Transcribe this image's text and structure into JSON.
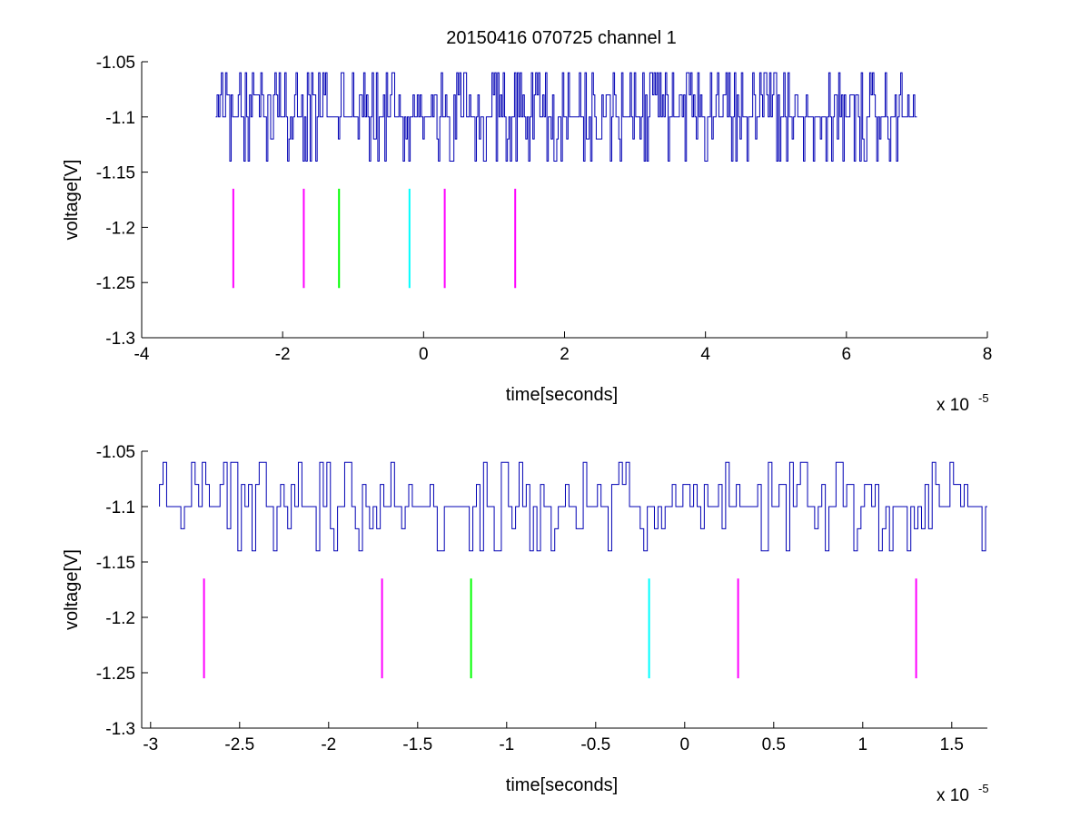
{
  "figure": {
    "title": "20150416 070725 channel 1"
  },
  "chart_data": [
    {
      "type": "line",
      "title": "20150416 070725 channel 1",
      "xlabel": "time[seconds]",
      "ylabel": "voltage[V]",
      "x_multiplier": "x 10",
      "x_exponent": "-5",
      "xlim": [
        -4,
        8
      ],
      "ylim": [
        -1.3,
        -1.05
      ],
      "xticks": [
        -4,
        -2,
        0,
        2,
        4,
        6,
        8
      ],
      "xtick_labels": [
        "-4",
        "-2",
        "0",
        "2",
        "4",
        "6",
        "8"
      ],
      "yticks": [
        -1.3,
        -1.25,
        -1.2,
        -1.15,
        -1.1,
        -1.05
      ],
      "ytick_labels": [
        "-1.3",
        "-1.25",
        "-1.2",
        "-1.15",
        "-1.1",
        "-1.05"
      ],
      "grid": false,
      "series": [
        {
          "color": "#0000b4",
          "x_range": [
            -2.95,
            7.0
          ],
          "levels": [
            -1.06,
            -1.08,
            -1.1,
            -1.12,
            -1.14
          ],
          "description_values": "digitized waveform fluctuating between -1.14 and -1.06, baseline -1.1"
        }
      ],
      "markers": [
        {
          "x": -2.7,
          "y_range": [
            -1.255,
            -1.165
          ],
          "color": "#ff00ff"
        },
        {
          "x": -1.7,
          "y_range": [
            -1.255,
            -1.165
          ],
          "color": "#ff00ff"
        },
        {
          "x": -1.2,
          "y_range": [
            -1.255,
            -1.165
          ],
          "color": "#00ff00"
        },
        {
          "x": -0.2,
          "y_range": [
            -1.255,
            -1.165
          ],
          "color": "#00ffff"
        },
        {
          "x": 0.3,
          "y_range": [
            -1.255,
            -1.165
          ],
          "color": "#ff00ff"
        },
        {
          "x": 1.3,
          "y_range": [
            -1.255,
            -1.165
          ],
          "color": "#ff00ff"
        }
      ]
    },
    {
      "type": "line",
      "title": "",
      "xlabel": "time[seconds]",
      "ylabel": "voltage[V]",
      "x_multiplier": "x 10",
      "x_exponent": "-5",
      "xlim": [
        -3.05,
        1.7
      ],
      "ylim": [
        -1.3,
        -1.05
      ],
      "xticks": [
        -3,
        -2.5,
        -2,
        -1.5,
        -1,
        -0.5,
        0,
        0.5,
        1,
        1.5
      ],
      "xtick_labels": [
        "-3",
        "-2.5",
        "-2",
        "-1.5",
        "-1",
        "-0.5",
        "0",
        "0.5",
        "1",
        "1.5"
      ],
      "yticks": [
        -1.3,
        -1.25,
        -1.2,
        -1.15,
        -1.1,
        -1.05
      ],
      "ytick_labels": [
        "-1.3",
        "-1.25",
        "-1.2",
        "-1.15",
        "-1.1",
        "-1.05"
      ],
      "grid": false,
      "series": [
        {
          "color": "#0000b4",
          "x_range": [
            -2.95,
            1.7
          ],
          "levels": [
            -1.06,
            -1.08,
            -1.1,
            -1.12,
            -1.14
          ],
          "description_values": "zoomed digitized waveform fluctuating between -1.14 and -1.06, baseline -1.1"
        }
      ],
      "markers": [
        {
          "x": -2.7,
          "y_range": [
            -1.255,
            -1.165
          ],
          "color": "#ff00ff"
        },
        {
          "x": -1.7,
          "y_range": [
            -1.255,
            -1.165
          ],
          "color": "#ff00ff"
        },
        {
          "x": -1.2,
          "y_range": [
            -1.255,
            -1.165
          ],
          "color": "#00ff00"
        },
        {
          "x": -0.2,
          "y_range": [
            -1.255,
            -1.165
          ],
          "color": "#00ffff"
        },
        {
          "x": 0.3,
          "y_range": [
            -1.255,
            -1.165
          ],
          "color": "#ff00ff"
        },
        {
          "x": 1.3,
          "y_range": [
            -1.255,
            -1.165
          ],
          "color": "#ff00ff"
        }
      ]
    }
  ]
}
